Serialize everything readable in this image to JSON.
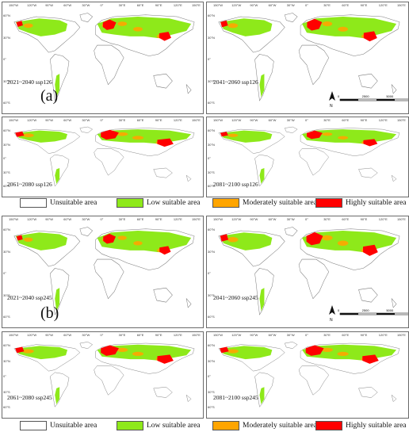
{
  "colors": {
    "unsuitable": "#ffffff",
    "low": "#8ee91a",
    "moderate": "#ffa500",
    "high": "#ff0000",
    "border": "#7a7a7a"
  },
  "group_a": {
    "label": "(a)",
    "panels": [
      "2021~2040 ssp126",
      "2041~2060 ssp126",
      "2061~2080 ssp126",
      "2081~2100 ssp126"
    ],
    "high_extent": [
      0.25,
      0.35,
      0.55,
      0.4
    ]
  },
  "group_b": {
    "label": "(b)",
    "panels": [
      "2021~2040 ssp245",
      "2041~2060 ssp245",
      "2061~2080 ssp245",
      "2081~2100 ssp245"
    ],
    "high_extent": [
      0.2,
      0.45,
      0.55,
      0.55
    ]
  },
  "legend": {
    "unsuitable": "Unsuitable area",
    "low": "Low suitable area",
    "moderate": "Moderately suitable area",
    "high": "Highly suitable area"
  },
  "axis": {
    "lon_top": [
      "150°W",
      "120°W",
      "90°W",
      "60°W",
      "30°W",
      "0°",
      "30°E",
      "60°E",
      "90°E",
      "120°E",
      "150°E"
    ],
    "lat_side": [
      "60°N",
      "30°N",
      "0°",
      "30°S",
      "60°S"
    ]
  },
  "scale_bar": {
    "labels": [
      "0",
      "2500",
      "5000",
      "10000"
    ],
    "unit": "km",
    "north": "N"
  }
}
